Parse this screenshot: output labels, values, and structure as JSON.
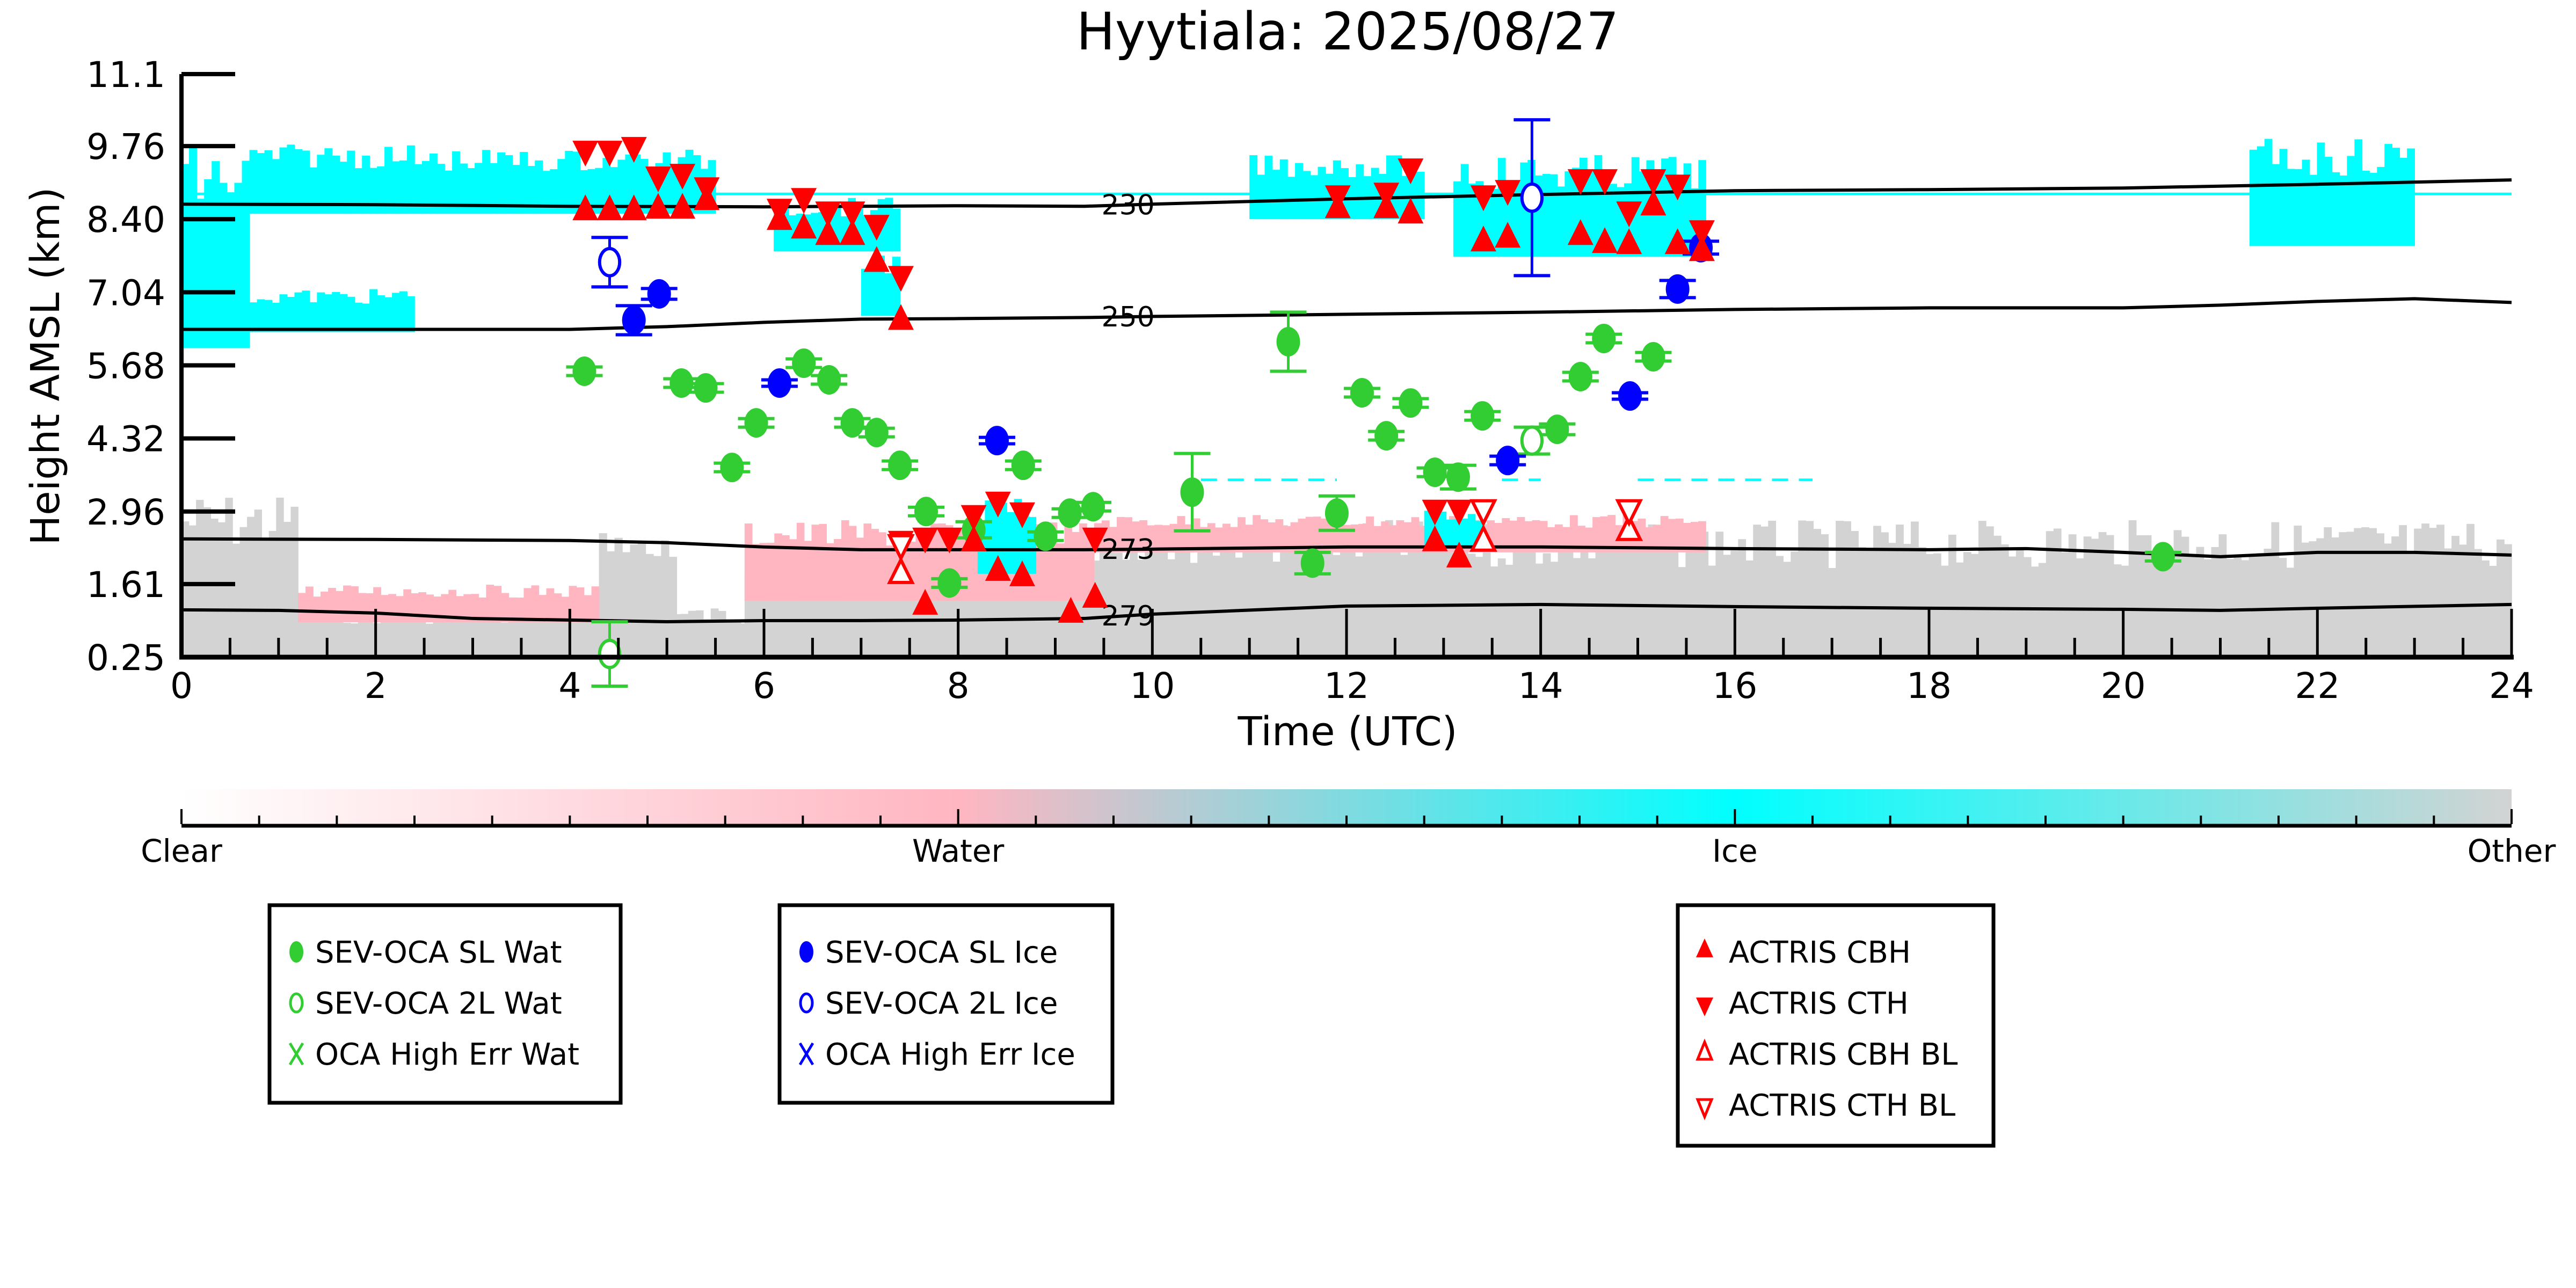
{
  "chart_data": {
    "type": "scatter",
    "title": "Hyytiala: 2025/08/27",
    "xlabel": "Time (UTC)",
    "ylabel": "Height AMSL (km)",
    "xlim": [
      0,
      24
    ],
    "ylim": [
      0.25,
      11.1
    ],
    "xticks": [
      "0",
      "2",
      "4",
      "6",
      "8",
      "10",
      "12",
      "14",
      "16",
      "18",
      "20",
      "22",
      "24"
    ],
    "xtick_values": [
      0,
      2,
      4,
      6,
      8,
      10,
      12,
      14,
      16,
      18,
      20,
      22,
      24
    ],
    "yticks": [
      "11.1",
      "9.76",
      "8.40",
      "7.04",
      "5.68",
      "4.32",
      "2.96",
      "1.61",
      "0.25"
    ],
    "ytick_values": [
      11.1,
      9.76,
      8.4,
      7.04,
      5.68,
      4.32,
      2.96,
      1.61,
      0.25
    ],
    "grid": false,
    "background_classification": {
      "description": "Cloud phase classification curtain",
      "categories": [
        "Clear",
        "Water",
        "Ice",
        "Other"
      ],
      "colors": {
        "Clear": "#FFFFFF",
        "Water": "#FFB6C1",
        "Ice": "#00FFFF",
        "Other": "#D3D3D3"
      },
      "ice_regions": [
        {
          "t0": 0.0,
          "t1": 0.7,
          "h0": 6.0,
          "h1": 9.8
        },
        {
          "t0": 0.7,
          "t1": 2.4,
          "h0": 8.5,
          "h1": 9.8
        },
        {
          "t0": 0.7,
          "t1": 2.4,
          "h0": 6.3,
          "h1": 7.1
        },
        {
          "t0": 2.4,
          "t1": 5.5,
          "h0": 8.5,
          "h1": 9.7
        },
        {
          "t0": 6.1,
          "t1": 7.4,
          "h0": 7.8,
          "h1": 8.8
        },
        {
          "t0": 7.0,
          "t1": 7.4,
          "h0": 6.6,
          "h1": 7.8
        },
        {
          "t0": 8.2,
          "t1": 8.8,
          "h0": 1.8,
          "h1": 3.2
        },
        {
          "t0": 11.0,
          "t1": 12.8,
          "h0": 8.4,
          "h1": 9.6
        },
        {
          "t0": 12.8,
          "t1": 13.4,
          "h0": 2.3,
          "h1": 3.0
        },
        {
          "t0": 13.1,
          "t1": 15.7,
          "h0": 7.7,
          "h1": 9.6
        },
        {
          "t0": 21.3,
          "t1": 23.0,
          "h0": 7.9,
          "h1": 9.9
        }
      ],
      "water_regions": [
        {
          "t0": 1.2,
          "t1": 4.3,
          "h0": 0.9,
          "h1": 1.6
        },
        {
          "t0": 5.8,
          "t1": 9.4,
          "h0": 1.3,
          "h1": 2.8
        },
        {
          "t0": 9.4,
          "t1": 15.7,
          "h0": 2.2,
          "h1": 2.9
        }
      ],
      "other_regions": [
        {
          "t0": 0.0,
          "t1": 1.2,
          "h0": 0.25,
          "h1": 3.3
        },
        {
          "t0": 1.2,
          "t1": 24.0,
          "h0": 0.25,
          "h1": 1.2
        },
        {
          "t0": 4.3,
          "t1": 5.1,
          "h0": 0.25,
          "h1": 2.6
        },
        {
          "t0": 5.8,
          "t1": 10.0,
          "h0": 0.25,
          "h1": 2.3
        },
        {
          "t0": 10.0,
          "t1": 24.0,
          "h0": 0.25,
          "h1": 2.8
        }
      ]
    },
    "temperature_contours": [
      {
        "label": "230",
        "t": [
          0,
          2,
          4,
          6,
          8,
          9.3,
          10,
          12,
          14,
          16,
          18,
          20,
          22,
          24
        ],
        "h": [
          8.68,
          8.67,
          8.64,
          8.63,
          8.65,
          8.64,
          8.68,
          8.78,
          8.86,
          8.93,
          8.95,
          8.98,
          9.05,
          9.13
        ]
      },
      {
        "label": "250",
        "t": [
          0,
          2,
          4,
          5,
          6,
          7,
          8,
          9.3,
          10,
          12,
          14,
          16,
          18,
          20,
          21,
          22,
          23,
          24
        ],
        "h": [
          6.35,
          6.35,
          6.35,
          6.4,
          6.48,
          6.54,
          6.55,
          6.57,
          6.59,
          6.63,
          6.67,
          6.72,
          6.75,
          6.75,
          6.8,
          6.87,
          6.92,
          6.85
        ]
      },
      {
        "label": "273",
        "t": [
          0,
          2,
          4,
          5,
          6,
          7,
          8,
          9.3,
          10,
          12,
          14,
          16,
          18,
          19,
          20,
          21,
          22,
          23,
          24
        ],
        "h": [
          2.45,
          2.44,
          2.42,
          2.38,
          2.3,
          2.25,
          2.25,
          2.25,
          2.26,
          2.3,
          2.3,
          2.27,
          2.25,
          2.27,
          2.2,
          2.12,
          2.2,
          2.2,
          2.15
        ]
      },
      {
        "label": "279",
        "t": [
          0,
          1,
          2,
          3,
          4,
          5,
          6,
          7,
          8,
          9.3,
          10,
          12,
          14,
          16,
          18,
          20,
          21,
          22,
          24
        ],
        "h": [
          1.13,
          1.12,
          1.07,
          0.97,
          0.94,
          0.91,
          0.93,
          0.93,
          0.94,
          0.97,
          1.05,
          1.2,
          1.23,
          1.19,
          1.16,
          1.14,
          1.12,
          1.16,
          1.23
        ]
      }
    ],
    "series": [
      {
        "name": "SEV-OCA SL Wat",
        "marker": "filled-circle",
        "color": "#32CD32",
        "points": [
          {
            "t": 4.15,
            "h": 5.57,
            "err": 0.08
          },
          {
            "t": 5.15,
            "h": 5.35,
            "err": 0.08
          },
          {
            "t": 5.4,
            "h": 5.26,
            "err": 0.08
          },
          {
            "t": 5.67,
            "h": 3.78,
            "err": 0.08
          },
          {
            "t": 5.92,
            "h": 4.61,
            "err": 0.08
          },
          {
            "t": 6.41,
            "h": 5.72,
            "err": 0.08
          },
          {
            "t": 6.67,
            "h": 5.41,
            "err": 0.08
          },
          {
            "t": 6.91,
            "h": 4.61,
            "err": 0.08
          },
          {
            "t": 7.16,
            "h": 4.43,
            "err": 0.08
          },
          {
            "t": 7.4,
            "h": 3.82,
            "err": 0.08
          },
          {
            "t": 7.67,
            "h": 2.96,
            "err": 0.08
          },
          {
            "t": 7.91,
            "h": 1.63,
            "err": 0.08
          },
          {
            "t": 8.16,
            "h": 2.62,
            "err": 0.15
          },
          {
            "t": 8.67,
            "h": 3.82,
            "err": 0.08
          },
          {
            "t": 8.9,
            "h": 2.5,
            "err": 0.08
          },
          {
            "t": 9.15,
            "h": 2.93,
            "err": 0.08
          },
          {
            "t": 9.39,
            "h": 3.05,
            "err": 0.08
          },
          {
            "t": 10.41,
            "h": 3.32,
            "err": 0.72
          },
          {
            "t": 11.4,
            "h": 6.12,
            "err": 0.55
          },
          {
            "t": 11.65,
            "h": 2.0,
            "err": 0.2
          },
          {
            "t": 11.9,
            "h": 2.93,
            "err": 0.32
          },
          {
            "t": 12.16,
            "h": 5.17,
            "err": 0.08
          },
          {
            "t": 12.41,
            "h": 4.37,
            "err": 0.08
          },
          {
            "t": 12.66,
            "h": 4.98,
            "err": 0.08
          },
          {
            "t": 12.91,
            "h": 3.69,
            "err": 0.08
          },
          {
            "t": 13.15,
            "h": 3.6,
            "err": 0.22
          },
          {
            "t": 13.4,
            "h": 4.74,
            "err": 0.08
          },
          {
            "t": 14.17,
            "h": 4.49,
            "err": 0.1
          },
          {
            "t": 14.41,
            "h": 5.47,
            "err": 0.08
          },
          {
            "t": 14.65,
            "h": 6.18,
            "err": 0.08
          },
          {
            "t": 15.16,
            "h": 5.84,
            "err": 0.08
          },
          {
            "t": 20.41,
            "h": 2.12,
            "err": 0.08
          }
        ]
      },
      {
        "name": "SEV-OCA 2L Wat",
        "marker": "open-circle",
        "color": "#32CD32",
        "points": [
          {
            "t": 4.41,
            "h": 0.31,
            "err": 0.6
          },
          {
            "t": 13.91,
            "h": 4.28,
            "err": 0.25
          }
        ]
      },
      {
        "name": "OCA High Err Wat",
        "marker": "x",
        "color": "#32CD32",
        "points": []
      },
      {
        "name": "SEV-OCA SL Ice",
        "marker": "filled-circle",
        "color": "#0000FF",
        "points": [
          {
            "t": 4.66,
            "h": 6.52,
            "err": 0.27
          },
          {
            "t": 4.92,
            "h": 7.01,
            "err": 0.1
          },
          {
            "t": 6.16,
            "h": 5.35,
            "err": 0.06
          },
          {
            "t": 8.4,
            "h": 4.28,
            "err": 0.06
          },
          {
            "t": 13.66,
            "h": 3.91,
            "err": 0.08
          },
          {
            "t": 14.92,
            "h": 5.11,
            "err": 0.06
          },
          {
            "t": 15.41,
            "h": 7.1,
            "err": 0.16
          },
          {
            "t": 15.65,
            "h": 7.87,
            "err": 0.12
          }
        ]
      },
      {
        "name": "SEV-OCA 2L Ice",
        "marker": "open-circle",
        "color": "#0000FF",
        "points": [
          {
            "t": 4.41,
            "h": 7.6,
            "err": 0.46
          },
          {
            "t": 13.91,
            "h": 8.8,
            "err": 1.45
          }
        ]
      },
      {
        "name": "OCA High Err Ice",
        "marker": "x",
        "color": "#0000FF",
        "points": []
      },
      {
        "name": "ACTRIS CBH",
        "marker": "filled-triangle-up",
        "color": "#FF0000",
        "points": [
          {
            "t": 4.16,
            "h": 8.56
          },
          {
            "t": 4.41,
            "h": 8.56
          },
          {
            "t": 4.66,
            "h": 8.56
          },
          {
            "t": 4.91,
            "h": 8.59
          },
          {
            "t": 5.16,
            "h": 8.59
          },
          {
            "t": 5.41,
            "h": 8.75
          },
          {
            "t": 6.16,
            "h": 8.38
          },
          {
            "t": 6.41,
            "h": 8.22
          },
          {
            "t": 6.66,
            "h": 8.1
          },
          {
            "t": 6.91,
            "h": 8.1
          },
          {
            "t": 7.16,
            "h": 7.6
          },
          {
            "t": 7.41,
            "h": 6.52
          },
          {
            "t": 7.66,
            "h": 1.22
          },
          {
            "t": 8.16,
            "h": 2.4
          },
          {
            "t": 8.41,
            "h": 1.85
          },
          {
            "t": 8.66,
            "h": 1.75
          },
          {
            "t": 9.16,
            "h": 1.07
          },
          {
            "t": 9.41,
            "h": 1.35
          },
          {
            "t": 11.91,
            "h": 8.6
          },
          {
            "t": 12.41,
            "h": 8.6
          },
          {
            "t": 12.66,
            "h": 8.5
          },
          {
            "t": 12.91,
            "h": 2.4
          },
          {
            "t": 13.16,
            "h": 2.1
          },
          {
            "t": 13.41,
            "h": 7.98
          },
          {
            "t": 13.66,
            "h": 8.05
          },
          {
            "t": 14.41,
            "h": 8.1
          },
          {
            "t": 14.66,
            "h": 7.95
          },
          {
            "t": 14.91,
            "h": 7.93
          },
          {
            "t": 15.16,
            "h": 8.65
          },
          {
            "t": 15.41,
            "h": 7.93
          },
          {
            "t": 15.66,
            "h": 7.8
          }
        ]
      },
      {
        "name": "ACTRIS CTH",
        "marker": "filled-triangle-down",
        "color": "#FF0000",
        "points": [
          {
            "t": 4.16,
            "h": 9.68
          },
          {
            "t": 4.41,
            "h": 9.68
          },
          {
            "t": 4.66,
            "h": 9.75
          },
          {
            "t": 4.91,
            "h": 9.2
          },
          {
            "t": 5.16,
            "h": 9.25
          },
          {
            "t": 5.41,
            "h": 9.0
          },
          {
            "t": 6.16,
            "h": 8.6
          },
          {
            "t": 6.41,
            "h": 8.8
          },
          {
            "t": 6.66,
            "h": 8.55
          },
          {
            "t": 6.91,
            "h": 8.55
          },
          {
            "t": 7.16,
            "h": 8.3
          },
          {
            "t": 7.41,
            "h": 7.35
          },
          {
            "t": 7.41,
            "h": 2.42
          },
          {
            "t": 7.66,
            "h": 2.48
          },
          {
            "t": 7.91,
            "h": 2.48
          },
          {
            "t": 8.16,
            "h": 2.9
          },
          {
            "t": 8.41,
            "h": 3.15
          },
          {
            "t": 8.66,
            "h": 2.95
          },
          {
            "t": 9.41,
            "h": 2.48
          },
          {
            "t": 11.91,
            "h": 8.85
          },
          {
            "t": 12.41,
            "h": 8.9
          },
          {
            "t": 12.66,
            "h": 9.35
          },
          {
            "t": 12.91,
            "h": 3.0
          },
          {
            "t": 13.16,
            "h": 3.0
          },
          {
            "t": 13.41,
            "h": 8.85
          },
          {
            "t": 13.66,
            "h": 8.95
          },
          {
            "t": 14.41,
            "h": 9.15
          },
          {
            "t": 14.66,
            "h": 9.15
          },
          {
            "t": 14.91,
            "h": 8.55
          },
          {
            "t": 15.16,
            "h": 9.15
          },
          {
            "t": 15.41,
            "h": 9.05
          },
          {
            "t": 15.66,
            "h": 8.2
          }
        ]
      },
      {
        "name": "ACTRIS CBH BL",
        "marker": "open-triangle-up",
        "color": "#FF0000",
        "points": [
          {
            "t": 7.41,
            "h": 1.8
          },
          {
            "t": 13.41,
            "h": 2.4
          },
          {
            "t": 14.91,
            "h": 2.6
          }
        ]
      },
      {
        "name": "ACTRIS CTH BL",
        "marker": "open-triangle-down",
        "color": "#FF0000",
        "points": [
          {
            "t": 7.41,
            "h": 2.35
          },
          {
            "t": 13.41,
            "h": 3.0
          },
          {
            "t": 14.91,
            "h": 3.0
          }
        ]
      }
    ],
    "ice_dashed_reference": {
      "h": 3.55,
      "segments": [
        [
          10.5,
          11.9
        ],
        [
          13.6,
          14.0
        ],
        [
          15.0,
          16.8
        ]
      ],
      "color": "#00FFFF"
    },
    "colorbar": {
      "labels": [
        "Clear",
        "Water",
        "Ice",
        "Other"
      ],
      "stops": [
        "#FFFFFF",
        "#FFB6C1",
        "#00FFFF",
        "#D3D3D3"
      ],
      "minor_ticks_per_segment": 10
    },
    "legends": [
      {
        "position": "bottom-left",
        "items": [
          {
            "label": "SEV-OCA SL Wat",
            "marker": "filled-circle",
            "color": "#32CD32"
          },
          {
            "label": "SEV-OCA 2L Wat",
            "marker": "open-circle",
            "color": "#32CD32"
          },
          {
            "label": "OCA High Err Wat",
            "marker": "x",
            "color": "#32CD32"
          }
        ]
      },
      {
        "position": "bottom-center-left",
        "items": [
          {
            "label": "SEV-OCA SL Ice",
            "marker": "filled-circle",
            "color": "#0000FF"
          },
          {
            "label": "SEV-OCA 2L Ice",
            "marker": "open-circle",
            "color": "#0000FF"
          },
          {
            "label": "OCA High Err Ice",
            "marker": "x",
            "color": "#0000FF"
          }
        ]
      },
      {
        "position": "bottom-center-right",
        "items": [
          {
            "label": "ACTRIS CBH",
            "marker": "filled-triangle-up",
            "color": "#FF0000"
          },
          {
            "label": "ACTRIS CTH",
            "marker": "filled-triangle-down",
            "color": "#FF0000"
          },
          {
            "label": "ACTRIS CBH BL",
            "marker": "open-triangle-up",
            "color": "#FF0000"
          },
          {
            "label": "ACTRIS CTH BL",
            "marker": "open-triangle-down",
            "color": "#FF0000"
          }
        ]
      }
    ]
  }
}
